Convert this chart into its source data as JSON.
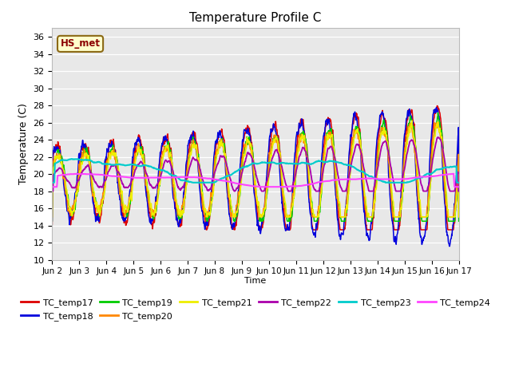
{
  "title": "Temperature Profile C",
  "xlabel": "Time",
  "ylabel": "Temperature (C)",
  "ylim": [
    10,
    37
  ],
  "yticks": [
    10,
    12,
    14,
    16,
    18,
    20,
    22,
    24,
    26,
    28,
    30,
    32,
    34,
    36
  ],
  "annotation": "HS_met",
  "bg_color": "#e8e8e8",
  "series_colors": {
    "TC_temp17": "#dd0000",
    "TC_temp18": "#0000dd",
    "TC_temp19": "#00cc00",
    "TC_temp20": "#ff8800",
    "TC_temp21": "#eeee00",
    "TC_temp22": "#aa00aa",
    "TC_temp23": "#00cccc",
    "TC_temp24": "#ff44ff"
  },
  "legend_order": [
    "TC_temp17",
    "TC_temp18",
    "TC_temp19",
    "TC_temp20",
    "TC_temp21",
    "TC_temp22",
    "TC_temp23",
    "TC_temp24"
  ],
  "xtick_labels": [
    "Jun 2",
    "Jun 3",
    "Jun 4",
    "Jun 5",
    "Jun 6",
    "Jun 7",
    "Jun 8",
    "Jun 9",
    "Jun 10",
    "Jun 11",
    "Jun 12",
    "Jun 13",
    "Jun 14",
    "Jun 15",
    "Jun 16",
    "Jun 17"
  ],
  "n_days": 15,
  "figsize": [
    6.4,
    4.8
  ],
  "dpi": 100
}
